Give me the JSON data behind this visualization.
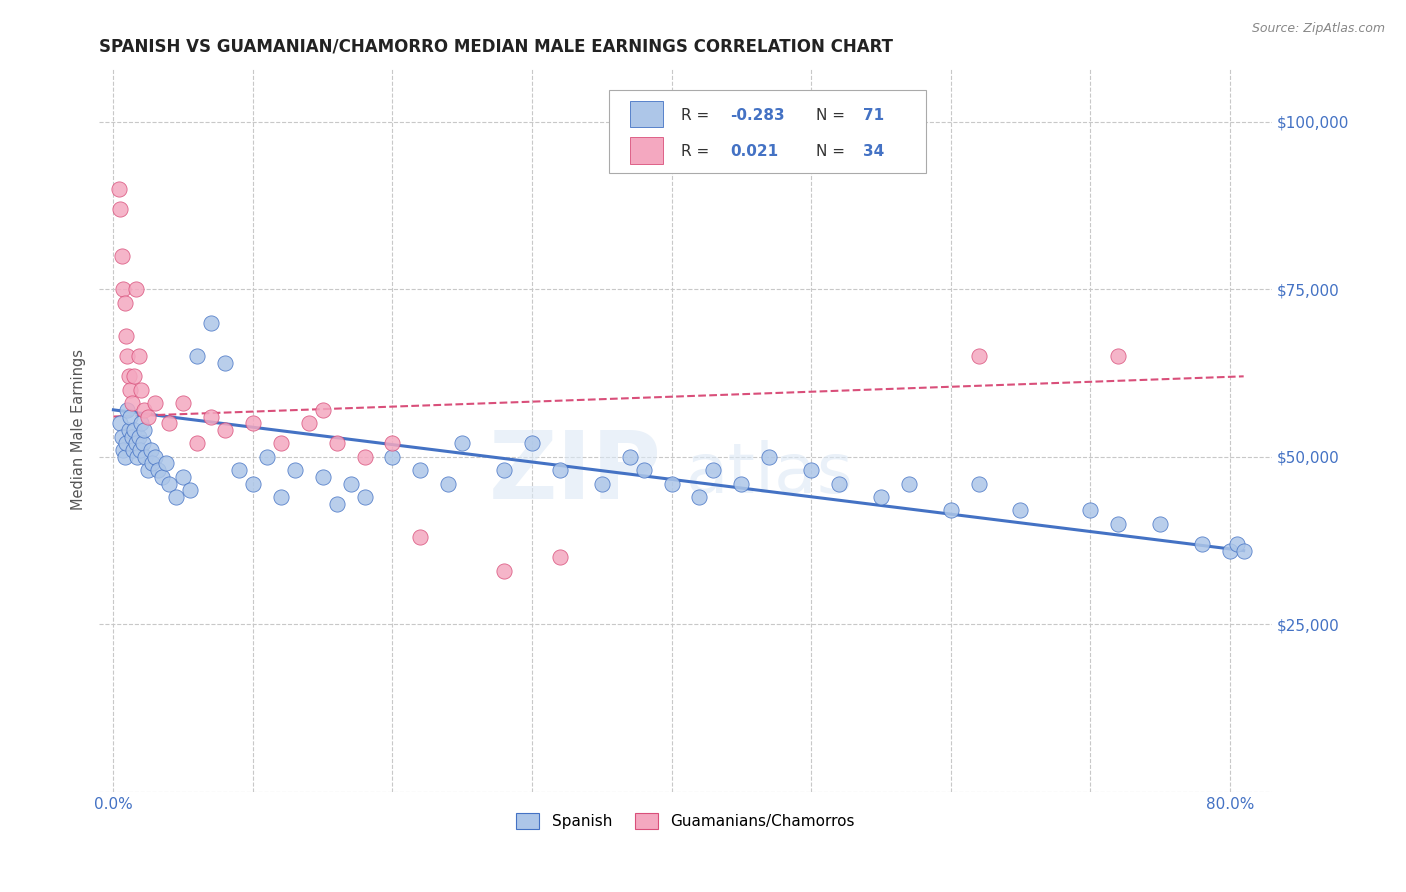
{
  "title": "SPANISH VS GUAMANIAN/CHAMORRO MEDIAN MALE EARNINGS CORRELATION CHART",
  "source": "Source: ZipAtlas.com",
  "ylabel_label": "Median Male Earnings",
  "x_ticks": [
    0.0,
    10.0,
    20.0,
    30.0,
    40.0,
    50.0,
    60.0,
    70.0,
    80.0
  ],
  "y_ticks": [
    0,
    25000,
    50000,
    75000,
    100000
  ],
  "xlim": [
    -1.0,
    83.0
  ],
  "ylim": [
    0,
    108000
  ],
  "background_color": "#ffffff",
  "grid_color": "#c8c8c8",
  "blue_color": "#4472c4",
  "blue_light": "#adc6e8",
  "pink_color": "#f4a8c0",
  "pink_line": "#d94f7a",
  "axis_label_color": "#4472c4",
  "tick_label_color": "#4472c4",
  "R_blue": -0.283,
  "N_blue": 71,
  "R_pink": 0.021,
  "N_pink": 34,
  "spanish_x": [
    0.5,
    0.6,
    0.7,
    0.8,
    0.9,
    1.0,
    1.1,
    1.2,
    1.3,
    1.4,
    1.5,
    1.6,
    1.7,
    1.8,
    1.9,
    2.0,
    2.1,
    2.2,
    2.3,
    2.5,
    2.7,
    2.8,
    3.0,
    3.2,
    3.5,
    3.8,
    4.0,
    4.5,
    5.0,
    5.5,
    6.0,
    7.0,
    8.0,
    9.0,
    10.0,
    11.0,
    12.0,
    13.0,
    15.0,
    16.0,
    17.0,
    18.0,
    20.0,
    22.0,
    24.0,
    25.0,
    28.0,
    30.0,
    32.0,
    35.0,
    37.0,
    38.0,
    40.0,
    42.0,
    43.0,
    45.0,
    47.0,
    50.0,
    52.0,
    55.0,
    57.0,
    60.0,
    62.0,
    65.0,
    70.0,
    72.0,
    75.0,
    78.0,
    80.0,
    80.5,
    81.0
  ],
  "spanish_y": [
    55000,
    53000,
    51000,
    50000,
    52000,
    57000,
    54000,
    56000,
    53000,
    51000,
    54000,
    52000,
    50000,
    53000,
    51000,
    55000,
    52000,
    54000,
    50000,
    48000,
    51000,
    49000,
    50000,
    48000,
    47000,
    49000,
    46000,
    44000,
    47000,
    45000,
    65000,
    70000,
    64000,
    48000,
    46000,
    50000,
    44000,
    48000,
    47000,
    43000,
    46000,
    44000,
    50000,
    48000,
    46000,
    52000,
    48000,
    52000,
    48000,
    46000,
    50000,
    48000,
    46000,
    44000,
    48000,
    46000,
    50000,
    48000,
    46000,
    44000,
    46000,
    42000,
    46000,
    42000,
    42000,
    40000,
    40000,
    37000,
    36000,
    37000,
    36000
  ],
  "chamorro_x": [
    0.4,
    0.5,
    0.6,
    0.7,
    0.8,
    0.9,
    1.0,
    1.1,
    1.2,
    1.3,
    1.5,
    1.6,
    1.8,
    2.0,
    2.2,
    2.5,
    3.0,
    4.0,
    5.0,
    6.0,
    7.0,
    8.0,
    10.0,
    12.0,
    14.0,
    15.0,
    16.0,
    18.0,
    20.0,
    22.0,
    28.0,
    32.0,
    62.0,
    72.0
  ],
  "chamorro_y": [
    90000,
    87000,
    80000,
    75000,
    73000,
    68000,
    65000,
    62000,
    60000,
    58000,
    62000,
    75000,
    65000,
    60000,
    57000,
    56000,
    58000,
    55000,
    58000,
    52000,
    56000,
    54000,
    55000,
    52000,
    55000,
    57000,
    52000,
    50000,
    52000,
    38000,
    33000,
    35000,
    65000,
    65000
  ],
  "blue_trend_x0": 0,
  "blue_trend_y0": 57000,
  "blue_trend_x1": 81,
  "blue_trend_y1": 36000,
  "pink_trend_x0": 0,
  "pink_trend_y0": 56000,
  "pink_trend_x1": 81,
  "pink_trend_y1": 62000
}
